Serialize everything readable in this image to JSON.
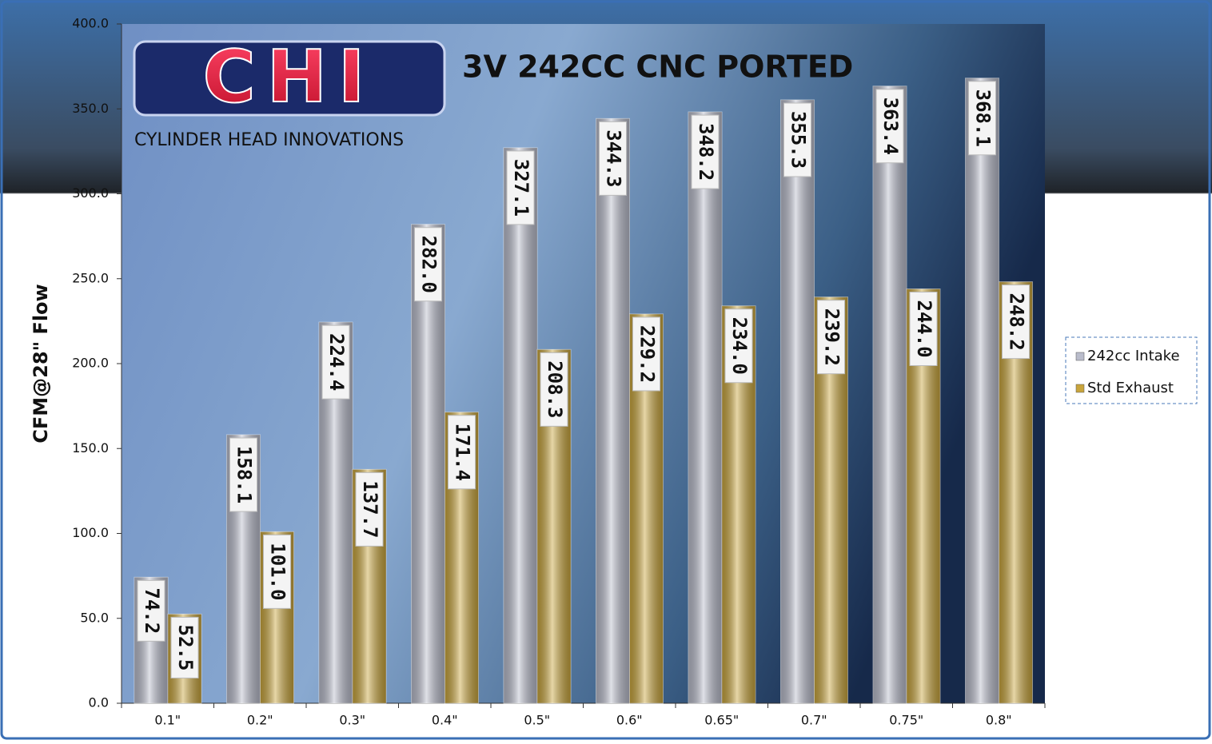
{
  "chart_data": {
    "type": "bar",
    "title": "3V 242CC CNC PORTED",
    "logo": "CHI",
    "subtitle": "CYLINDER HEAD INNOVATIONS",
    "y_label": "CFM@28\" Flow",
    "categories": [
      "0.1\"",
      "0.2\"",
      "0.3\"",
      "0.4\"",
      "0.5\"",
      "0.6\"",
      "0.65\"",
      "0.7\"",
      "0.75\"",
      "0.8\""
    ],
    "series": [
      {
        "name": "242cc Intake",
        "color": "#b9bccb",
        "values": [
          74.2,
          158.1,
          224.4,
          282,
          327.1,
          344.3,
          348.2,
          355.3,
          363.4,
          368.1
        ],
        "value_labels": [
          "74.2",
          "158.1",
          "224.4",
          "282.0",
          "327.1",
          "344.3",
          "348.2",
          "355.3",
          "363.4",
          "368.1"
        ]
      },
      {
        "name": "Std Exhaust",
        "color": "#c9a53c",
        "values": [
          52.5,
          101,
          137.7,
          171.4,
          208.3,
          229.2,
          234,
          239.2,
          244,
          248.2
        ],
        "value_labels": [
          "52.5",
          "101.0",
          "137.7",
          "171.4",
          "208.3",
          "229.2",
          "234.0",
          "239.2",
          "244.0",
          "248.2"
        ]
      }
    ],
    "ylim": [
      0,
      400
    ],
    "yticks": [
      {
        "value": 0,
        "label": "0.0"
      },
      {
        "value": 50,
        "label": "50.0"
      },
      {
        "value": 100,
        "label": "100.0"
      },
      {
        "value": 150,
        "label": "150.0"
      },
      {
        "value": 200,
        "label": "200.0"
      },
      {
        "value": 250,
        "label": "250.0"
      },
      {
        "value": 300,
        "label": "300.0"
      },
      {
        "value": 350,
        "label": "350.0"
      },
      {
        "value": 400,
        "label": "400.0"
      }
    ],
    "legend": "right"
  }
}
